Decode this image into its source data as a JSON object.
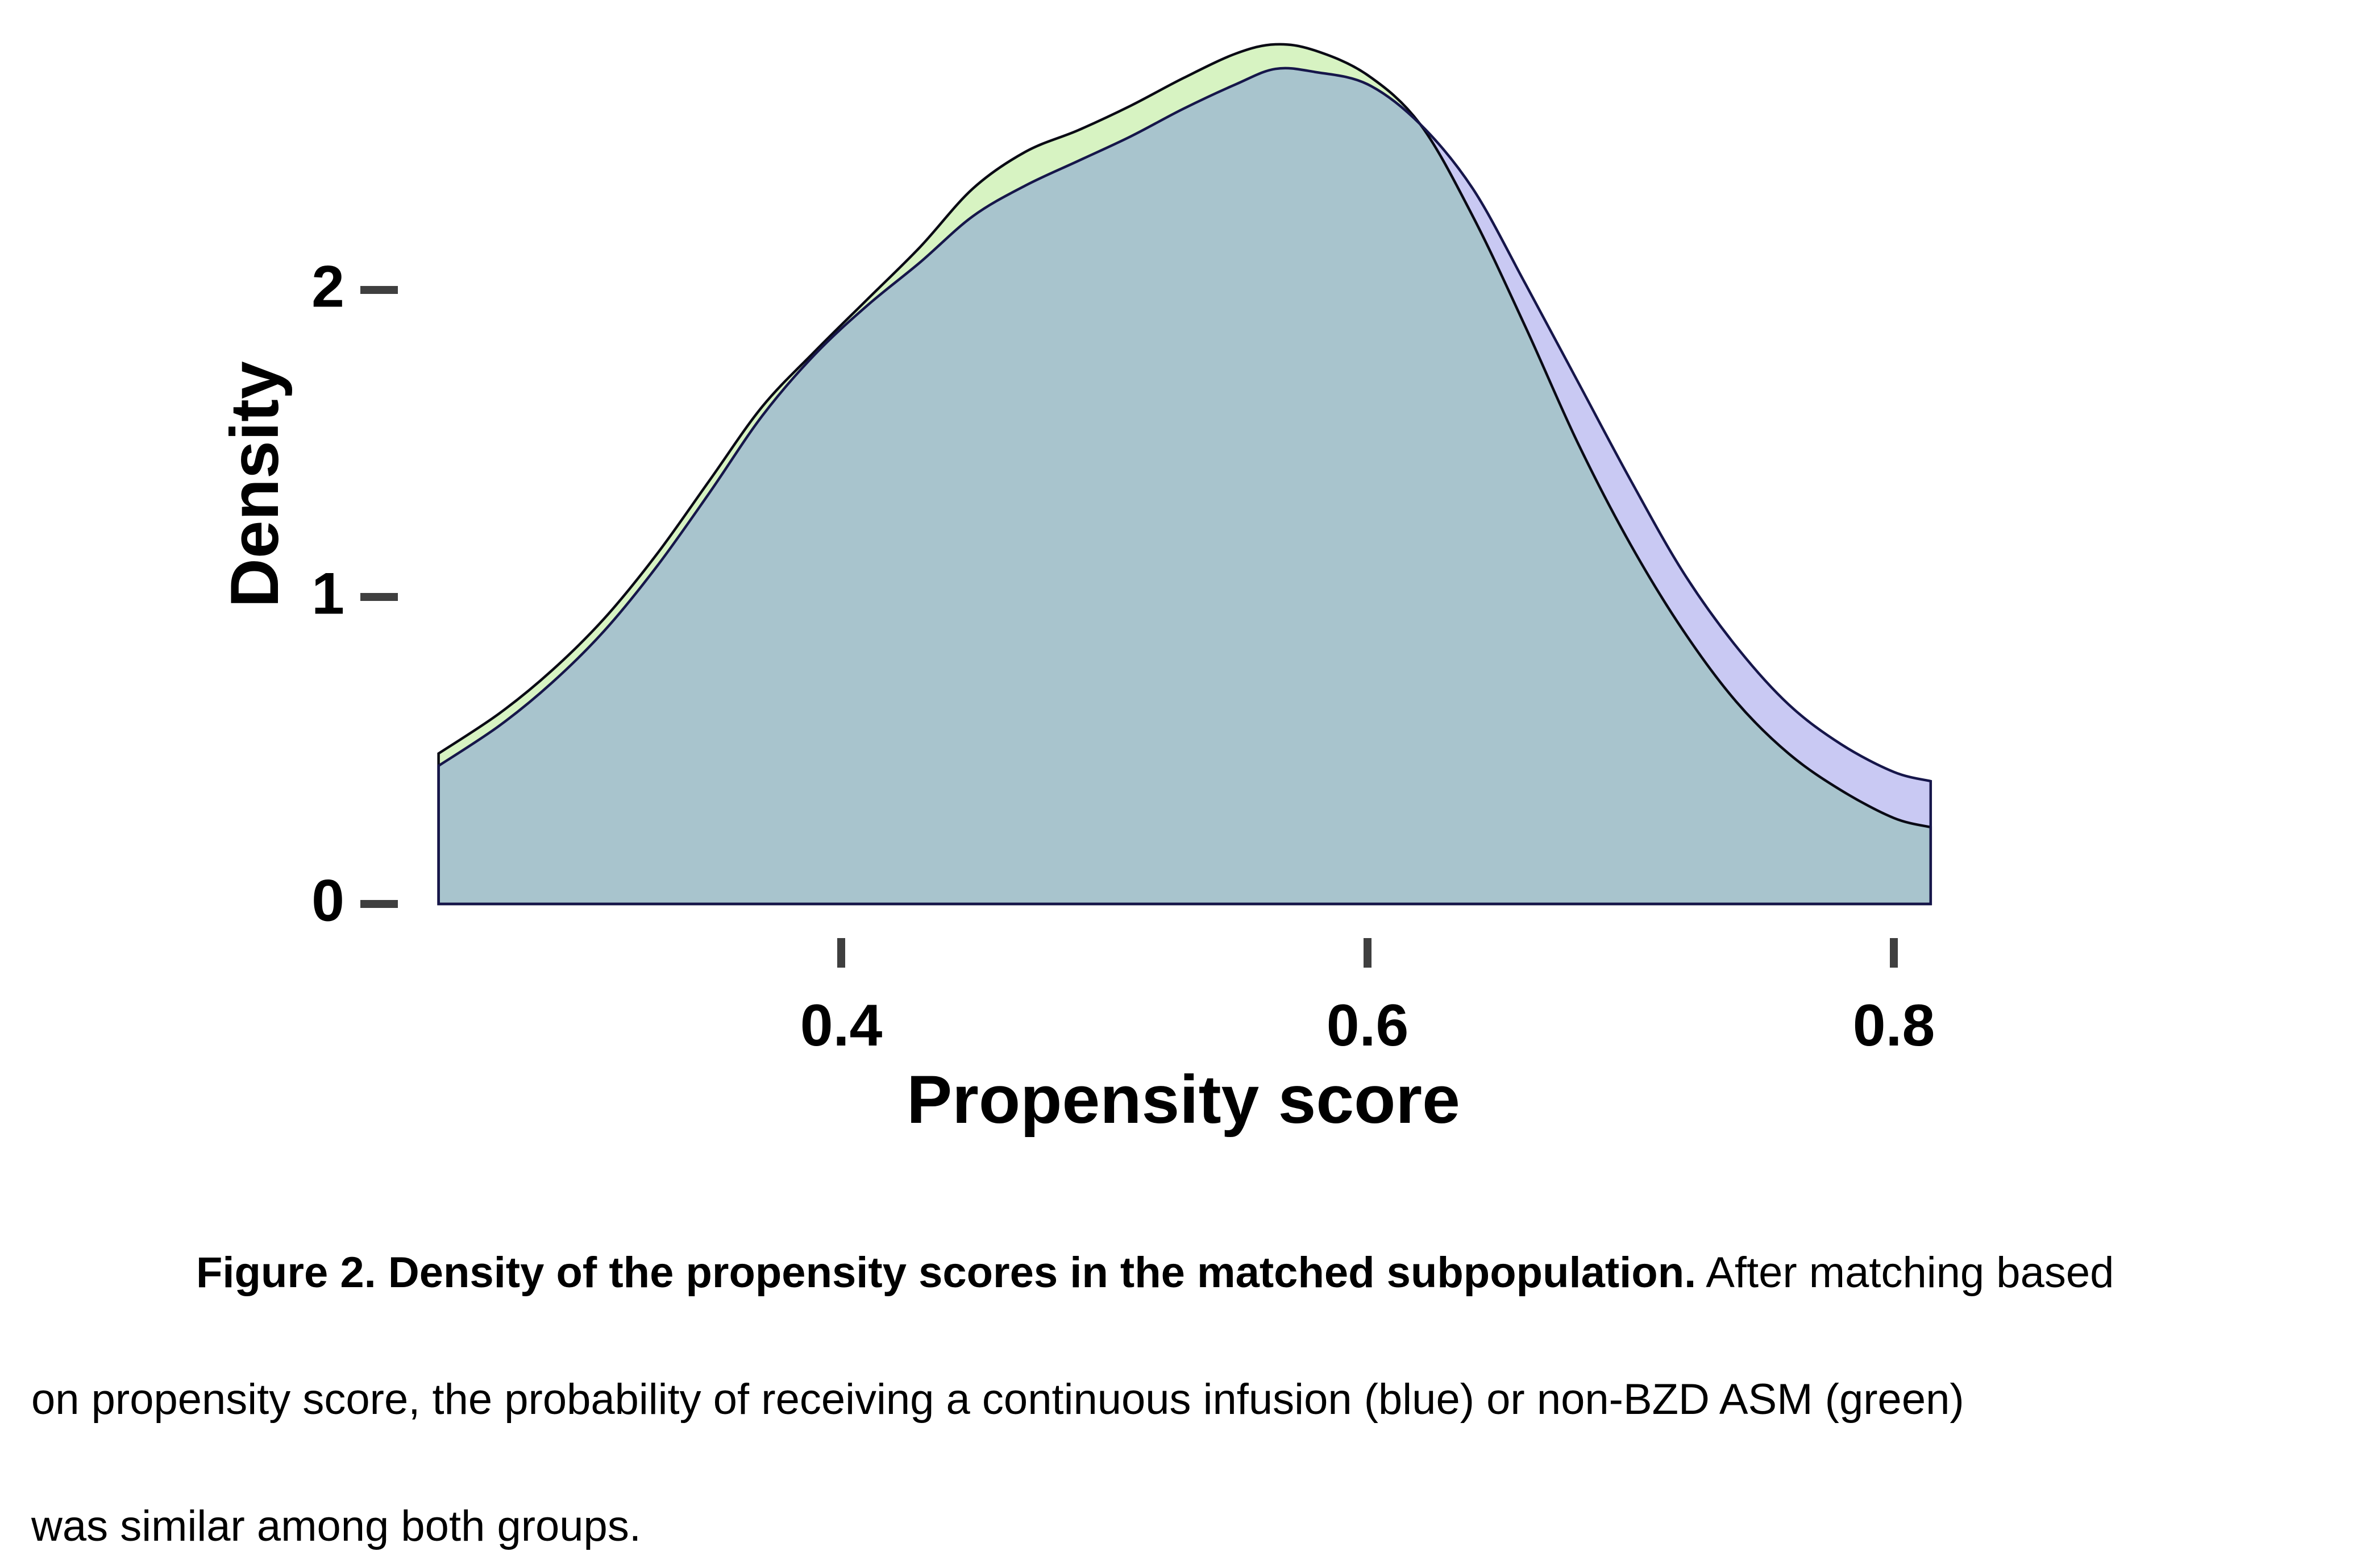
{
  "figure": {
    "x_axis": {
      "label": "Propensity score",
      "ticks": [
        "0.4",
        "0.6",
        "0.8"
      ],
      "tick_values": [
        0.4,
        0.6,
        0.8
      ]
    },
    "y_axis": {
      "label": "Density",
      "ticks": [
        "0",
        "1",
        "2"
      ],
      "tick_values": [
        0,
        1,
        2
      ]
    }
  },
  "caption": {
    "line1_bold": "Figure 2. Density of the propensity scores in the matched subpopulation.",
    "line1_regular": " After matching based",
    "line2": "on propensity score, the probability of receiving a continuous infusion (blue) or non-BZD ASM (green)",
    "line3": "was similar among both groups."
  },
  "colors": {
    "background": "#ffffff",
    "tick": "#3f3f3f",
    "text": "#000000",
    "blue_fill": "#c9c9f3",
    "green_fill": "#d7f3c2",
    "overlap_fill": "#a8c4cd",
    "blue_outline": "#16164a",
    "green_outline": "#0a0a14"
  },
  "chart_data": {
    "type": "area",
    "title": "",
    "xlabel": "Propensity score",
    "ylabel": "Density",
    "xlim": [
      0.247,
      0.814
    ],
    "ylim": [
      0,
      2.9
    ],
    "x_ticks": [
      0.4,
      0.6,
      0.8
    ],
    "y_ticks": [
      0,
      1,
      2
    ],
    "grid": false,
    "legend_position": "none",
    "x": [
      0.247,
      0.27,
      0.29,
      0.31,
      0.33,
      0.35,
      0.37,
      0.39,
      0.41,
      0.43,
      0.45,
      0.47,
      0.49,
      0.51,
      0.53,
      0.55,
      0.565,
      0.58,
      0.6,
      0.62,
      0.64,
      0.66,
      0.68,
      0.7,
      0.72,
      0.74,
      0.76,
      0.78,
      0.8,
      0.814
    ],
    "series": [
      {
        "name": "continuous infusion (blue)",
        "fill": "#c9c9f3",
        "outline": "#16164a",
        "values": [
          0.45,
          0.58,
          0.72,
          0.89,
          1.1,
          1.34,
          1.59,
          1.79,
          1.95,
          2.09,
          2.24,
          2.34,
          2.42,
          2.5,
          2.59,
          2.67,
          2.72,
          2.71,
          2.67,
          2.54,
          2.33,
          2.02,
          1.7,
          1.38,
          1.08,
          0.84,
          0.65,
          0.52,
          0.43,
          0.4
        ]
      },
      {
        "name": "non-BZD ASM (green)",
        "fill": "#d7f3c2",
        "outline": "#0a0a14",
        "values": [
          0.49,
          0.62,
          0.76,
          0.93,
          1.14,
          1.38,
          1.62,
          1.8,
          1.97,
          2.14,
          2.33,
          2.45,
          2.52,
          2.6,
          2.69,
          2.77,
          2.8,
          2.78,
          2.7,
          2.54,
          2.24,
          1.88,
          1.5,
          1.17,
          0.89,
          0.66,
          0.49,
          0.37,
          0.28,
          0.25
        ]
      }
    ],
    "overlap_fill": "#a8c4cd",
    "annotation": "overlap region shown where both densities coincide"
  }
}
